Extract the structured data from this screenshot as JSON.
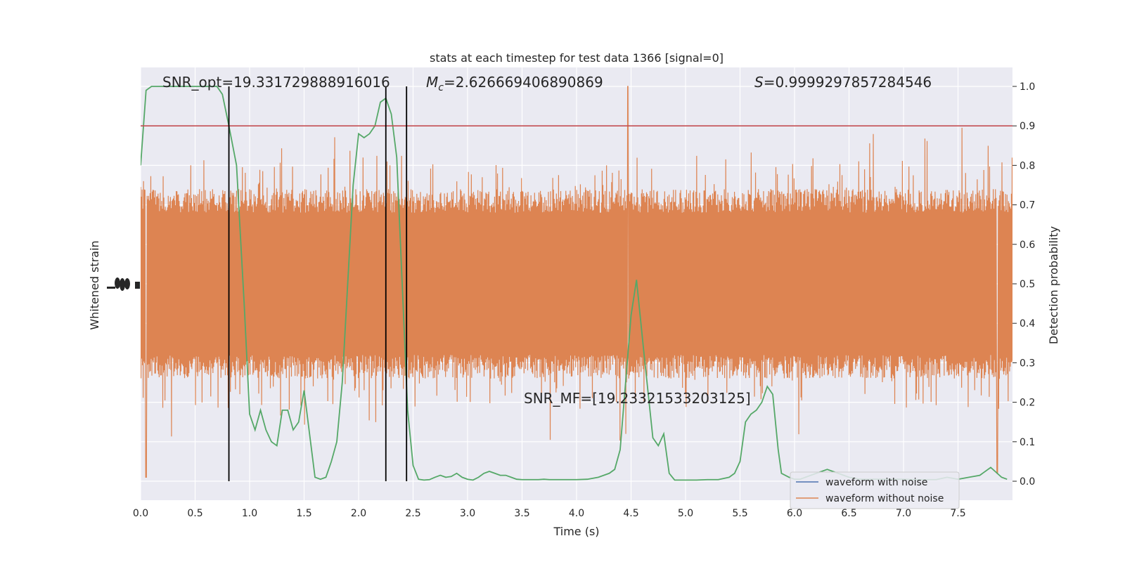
{
  "chart_data": {
    "type": "line",
    "title": "stats at each timestep for test data 1366 [signal=0]",
    "xlabel": "Time (s)",
    "ylabel_left": "Whitened strain",
    "ylabel_right": "Detection probability",
    "xlim": [
      0.0,
      8.0
    ],
    "ylim_right": [
      -0.048,
      1.048
    ],
    "grid": true,
    "legend_placement": "lower-right",
    "x_ticks": [
      "0.0",
      "0.5",
      "1.0",
      "1.5",
      "2.0",
      "2.5",
      "3.0",
      "3.5",
      "4.0",
      "4.5",
      "5.0",
      "5.5",
      "6.0",
      "6.5",
      "7.0",
      "7.5"
    ],
    "x_tick_values": [
      0.0,
      0.5,
      1.0,
      1.5,
      2.0,
      2.5,
      3.0,
      3.5,
      4.0,
      4.5,
      5.0,
      5.5,
      6.0,
      6.5,
      7.0,
      7.5
    ],
    "y_ticks_right": [
      "0.0",
      "0.1",
      "0.2",
      "0.3",
      "0.4",
      "0.5",
      "0.6",
      "0.7",
      "0.8",
      "0.9",
      "1.0"
    ],
    "y_tick_values_right": [
      0.0,
      0.1,
      0.2,
      0.3,
      0.4,
      0.5,
      0.6,
      0.7,
      0.8,
      0.9,
      1.0
    ],
    "annotations": {
      "snr_opt": "SNR_opt=19.331729888916016",
      "mc_symbol": "M",
      "mc_sub": "c",
      "mc_value": "=2.626669406890869",
      "s_symbol": "S",
      "s_value": "=0.9999297857284546",
      "snr_mf": "SNR_MF=[19.23321533203125]"
    },
    "threshold": 0.9,
    "vertical_lines_x": [
      0.81,
      2.25,
      2.44
    ],
    "series": [
      {
        "name": "waveform with noise",
        "color": "#4c72b0",
        "values": []
      },
      {
        "name": "waveform without noise",
        "color": "#dd8452",
        "band_upper_typical": 0.7,
        "band_lower_typical": 0.3,
        "peak_max": 1.0,
        "trough_min": 0.01
      },
      {
        "name": "",
        "color": "#55a868",
        "x": [
          0.0,
          0.05,
          0.1,
          0.2,
          0.3,
          0.4,
          0.5,
          0.6,
          0.7,
          0.75,
          0.81,
          0.88,
          0.95,
          1.0,
          1.05,
          1.1,
          1.15,
          1.2,
          1.25,
          1.3,
          1.35,
          1.4,
          1.45,
          1.5,
          1.55,
          1.6,
          1.65,
          1.7,
          1.75,
          1.8,
          1.85,
          1.9,
          1.95,
          2.0,
          2.05,
          2.1,
          2.15,
          2.2,
          2.25,
          2.3,
          2.35,
          2.4,
          2.45,
          2.5,
          2.55,
          2.6,
          2.65,
          2.7,
          2.75,
          2.8,
          2.85,
          2.9,
          2.95,
          3.0,
          3.05,
          3.1,
          3.15,
          3.2,
          3.25,
          3.3,
          3.35,
          3.4,
          3.45,
          3.5,
          3.55,
          3.6,
          3.65,
          3.7,
          3.75,
          3.8,
          3.9,
          4.0,
          4.1,
          4.2,
          4.3,
          4.35,
          4.4,
          4.45,
          4.5,
          4.55,
          4.62,
          4.7,
          4.75,
          4.8,
          4.85,
          4.9,
          4.95,
          5.0,
          5.1,
          5.2,
          5.3,
          5.4,
          5.45,
          5.5,
          5.55,
          5.6,
          5.65,
          5.7,
          5.75,
          5.8,
          5.85,
          5.88,
          5.95,
          6.0,
          6.05,
          6.1,
          6.2,
          6.3,
          6.4,
          6.5,
          6.6,
          6.7,
          6.8,
          6.9,
          7.0,
          7.1,
          7.2,
          7.3,
          7.4,
          7.5,
          7.6,
          7.7,
          7.8,
          7.9,
          7.95
        ],
        "values": [
          0.8,
          0.99,
          1.0,
          1.0,
          1.0,
          1.0,
          1.0,
          1.0,
          1.0,
          0.98,
          0.9,
          0.8,
          0.45,
          0.17,
          0.13,
          0.18,
          0.13,
          0.1,
          0.09,
          0.18,
          0.18,
          0.13,
          0.15,
          0.23,
          0.12,
          0.01,
          0.005,
          0.01,
          0.05,
          0.1,
          0.25,
          0.5,
          0.75,
          0.88,
          0.87,
          0.88,
          0.9,
          0.96,
          0.97,
          0.93,
          0.82,
          0.5,
          0.18,
          0.04,
          0.005,
          0.003,
          0.004,
          0.01,
          0.015,
          0.01,
          0.012,
          0.02,
          0.01,
          0.005,
          0.003,
          0.01,
          0.02,
          0.025,
          0.02,
          0.015,
          0.015,
          0.01,
          0.005,
          0.004,
          0.004,
          0.004,
          0.004,
          0.005,
          0.004,
          0.004,
          0.004,
          0.004,
          0.005,
          0.01,
          0.02,
          0.03,
          0.08,
          0.25,
          0.42,
          0.51,
          0.32,
          0.11,
          0.09,
          0.12,
          0.02,
          0.003,
          0.003,
          0.003,
          0.003,
          0.004,
          0.004,
          0.01,
          0.02,
          0.05,
          0.15,
          0.17,
          0.18,
          0.2,
          0.24,
          0.22,
          0.08,
          0.02,
          0.01,
          0.005,
          0.005,
          0.01,
          0.02,
          0.03,
          0.02,
          0.01,
          0.005,
          0.005,
          0.005,
          0.005,
          0.005,
          0.004,
          0.004,
          0.004,
          0.01,
          0.005,
          0.01,
          0.015,
          0.035,
          0.01,
          0.005
        ]
      }
    ]
  }
}
